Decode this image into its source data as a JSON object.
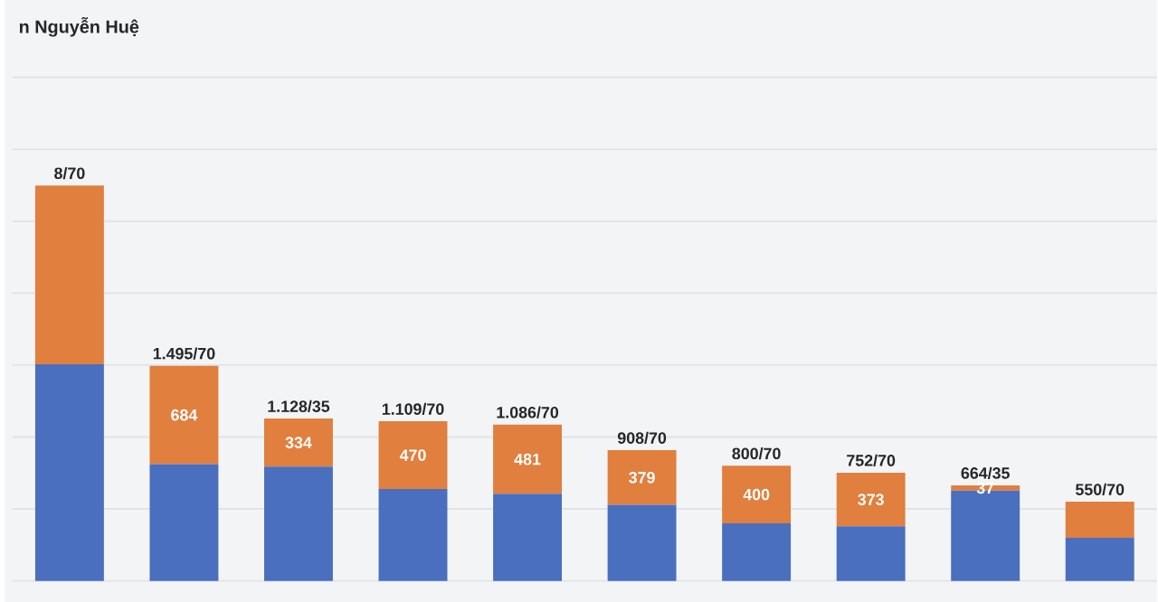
{
  "chart_data": {
    "type": "bar",
    "title": "n Nguyễn Huệ",
    "stacked": true,
    "categories": [
      null,
      null,
      null,
      null,
      null,
      null,
      null,
      null,
      null,
      null
    ],
    "series": [
      {
        "color": "#4a6fbe",
        "values": [
          1505,
          811,
          794,
          639,
          605,
          529,
          400,
          379,
          627,
          300
        ],
        "value_labels": [
          null,
          null,
          null,
          null,
          null,
          null,
          null,
          null,
          null,
          null
        ]
      },
      {
        "color": "#e07f3e",
        "values": [
          1243,
          684,
          334,
          470,
          481,
          379,
          400,
          373,
          37,
          250
        ],
        "value_labels": [
          null,
          "684",
          "334",
          "470",
          "481",
          "379",
          "400",
          "373",
          "37",
          null
        ]
      }
    ],
    "totals": [
      "8/70",
      "1.495/70",
      "1.128/35",
      "1.109/70",
      "1.086/70",
      "908/70",
      "800/70",
      "752/70",
      "664/35",
      "550/70"
    ],
    "yticks": [
      {
        "value": 0,
        "label": null
      },
      {
        "value": 500,
        "label": null
      },
      {
        "value": 1000,
        "label": null
      },
      {
        "value": 1500,
        "label": null
      },
      {
        "value": 2000,
        "label": null
      },
      {
        "value": 2500,
        "label": null
      },
      {
        "value": 3000,
        "label": null
      },
      {
        "value": 3500,
        "label": null
      }
    ],
    "grid": "y"
  }
}
